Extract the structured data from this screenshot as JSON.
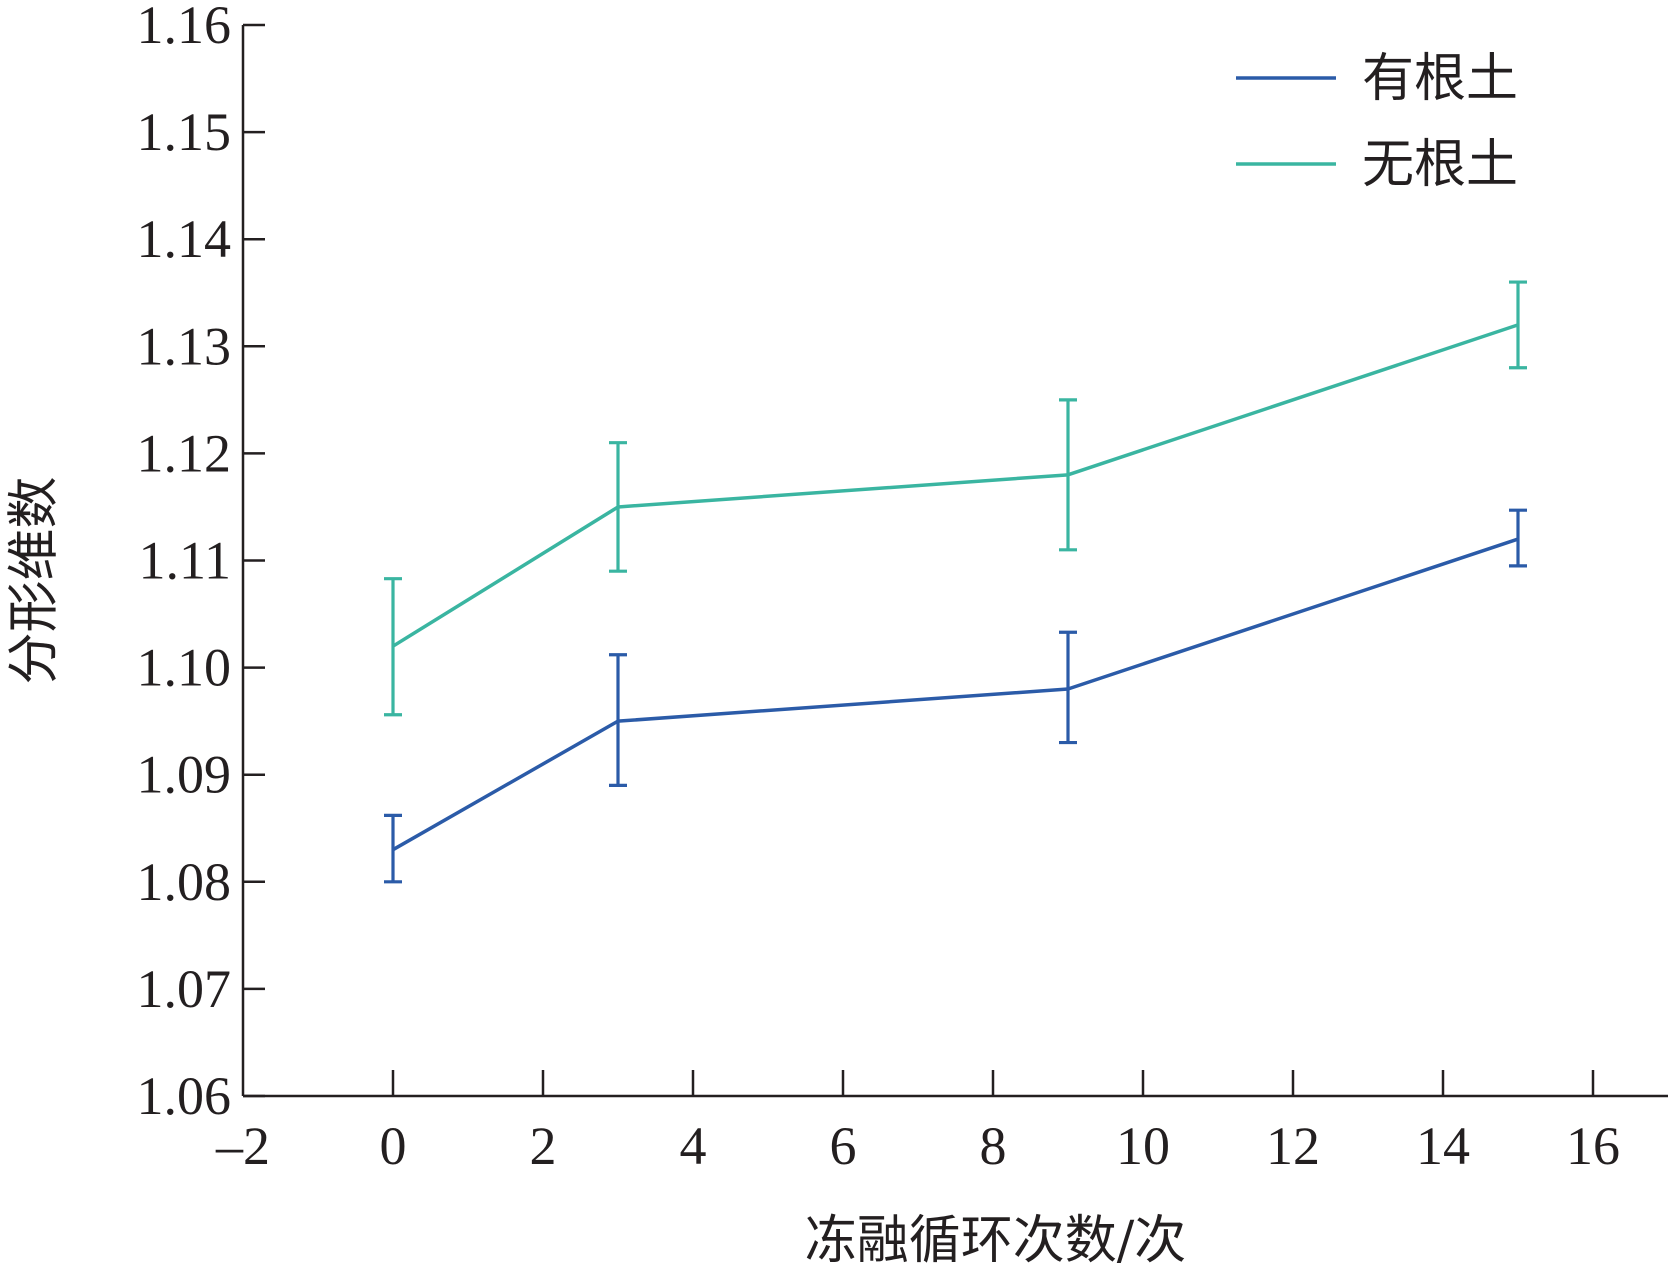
{
  "chart_data": {
    "type": "line",
    "title": "",
    "xlabel": "冻融循环次数/次",
    "ylabel": "分形维数",
    "xlim": [
      -2,
      17
    ],
    "ylim": [
      1.06,
      1.16
    ],
    "x_ticks": [
      -2,
      0,
      2,
      4,
      6,
      8,
      10,
      12,
      14,
      16
    ],
    "x_tick_labels": [
      "–2",
      "0",
      "2",
      "4",
      "6",
      "8",
      "10",
      "12",
      "14",
      "16"
    ],
    "y_ticks": [
      1.06,
      1.07,
      1.08,
      1.09,
      1.1,
      1.11,
      1.12,
      1.13,
      1.14,
      1.15,
      1.16
    ],
    "y_tick_labels": [
      "1.06",
      "1.07",
      "1.08",
      "1.09",
      "1.10",
      "1.11",
      "1.12",
      "1.13",
      "1.14",
      "1.15",
      "1.16"
    ],
    "grid": false,
    "legend_position": "top-right",
    "series": [
      {
        "name": "有根土",
        "color": "#2b5ba8",
        "x": [
          0,
          3,
          9,
          15
        ],
        "y": [
          1.083,
          1.095,
          1.098,
          1.112
        ],
        "err_low": [
          1.08,
          1.089,
          1.093,
          1.1095
        ],
        "err_high": [
          1.0862,
          1.1012,
          1.1033,
          1.1147
        ]
      },
      {
        "name": "无根土",
        "color": "#3ab5a1",
        "x": [
          0,
          3,
          9,
          15
        ],
        "y": [
          1.102,
          1.115,
          1.118,
          1.132
        ],
        "err_low": [
          1.0956,
          1.109,
          1.111,
          1.128
        ],
        "err_high": [
          1.1083,
          1.121,
          1.125,
          1.136
        ]
      }
    ]
  }
}
